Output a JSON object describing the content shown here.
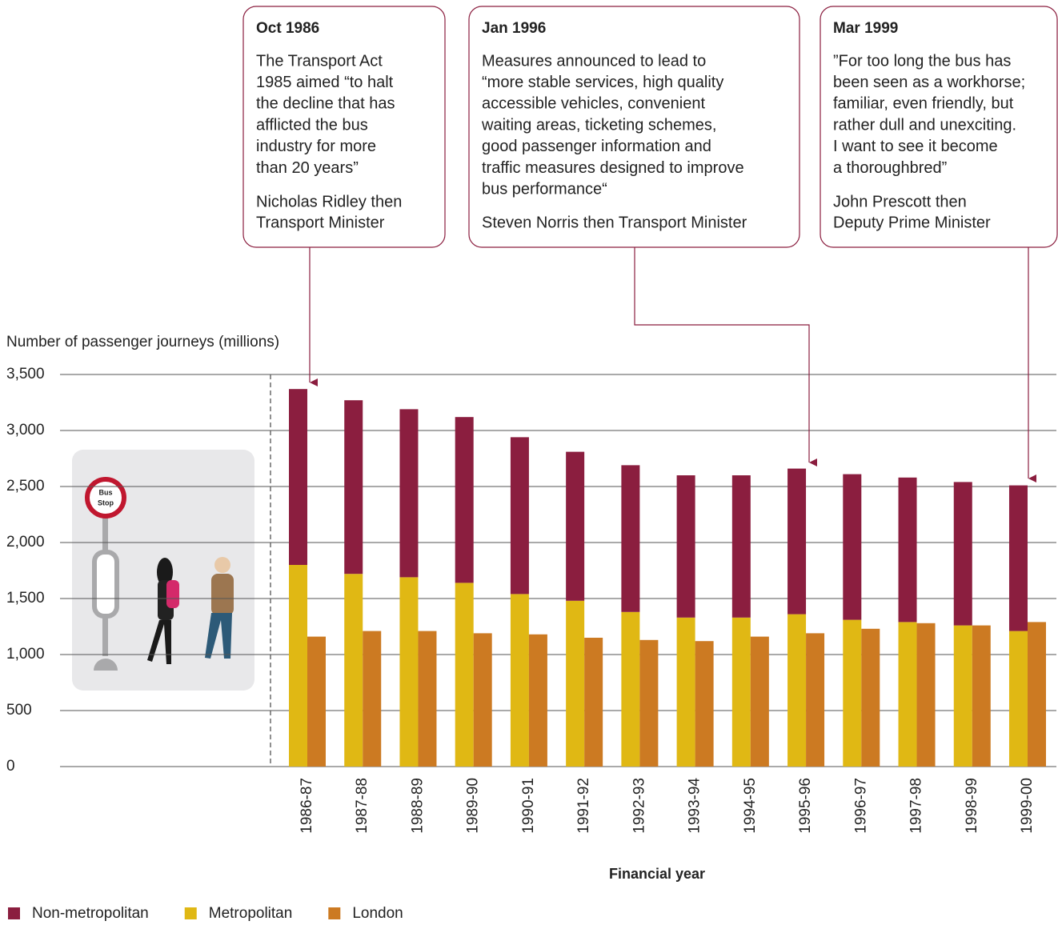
{
  "chart_data": {
    "type": "bar",
    "y_label": "Number of passenger journeys (millions)",
    "x_label": "Financial year",
    "categories": [
      "1986-87",
      "1987-88",
      "1988-89",
      "1989-90",
      "1990-91",
      "1991-92",
      "1992-93",
      "1993-94",
      "1994-95",
      "1995-96",
      "1996-97",
      "1997-98",
      "1998-99",
      "1999-00"
    ],
    "series": [
      {
        "name": "Non-metropolitan",
        "color": "#8b1e3f",
        "values": [
          1570,
          1550,
          1500,
          1480,
          1400,
          1330,
          1310,
          1270,
          1270,
          1300,
          1300,
          1290,
          1280,
          1300
        ]
      },
      {
        "name": "Metropolitan",
        "color": "#e0b814",
        "values": [
          1800,
          1720,
          1690,
          1640,
          1540,
          1480,
          1380,
          1330,
          1330,
          1360,
          1310,
          1290,
          1260,
          1210
        ]
      },
      {
        "name": "London",
        "color": "#cc7a22",
        "values": [
          1160,
          1210,
          1210,
          1190,
          1180,
          1150,
          1130,
          1120,
          1160,
          1190,
          1230,
          1280,
          1260,
          1290
        ]
      }
    ],
    "ylim": [
      0,
      3500
    ],
    "yticks": [
      0,
      500,
      {
        "value": 1000,
        "label": "1,000"
      },
      {
        "value": 1500,
        "label": "1,500"
      },
      {
        "value": 2000,
        "label": "2,000"
      },
      {
        "value": 2500,
        "label": "2,500"
      },
      {
        "value": 3000,
        "label": "3,000"
      },
      {
        "value": 3500,
        "label": "3,500"
      }
    ],
    "grid": true,
    "legend": "bottom-left",
    "annotations": [
      {
        "date": "Oct 1986",
        "lines": [
          "The Transport Act",
          "1985 aimed “to halt",
          "the decline that has",
          "afflicted the bus",
          "industry for more",
          "than 20 years”"
        ],
        "source": [
          "Nicholas Ridley then",
          "Transport Minister"
        ]
      },
      {
        "date": "Jan 1996",
        "lines": [
          "Measures announced to lead to",
          "“more stable services, high quality",
          "accessible vehicles, convenient",
          "waiting areas, ticketing schemes,",
          "good passenger information and",
          "traffic measures designed to improve",
          "bus performance“"
        ],
        "source": [
          "Steven Norris then Transport Minister"
        ]
      },
      {
        "date": "Mar 1999",
        "lines": [
          "”For too long the bus has",
          "been seen as a workhorse;",
          "familiar, even friendly, but",
          "rather dull and unexciting.",
          "I want to see it become",
          "a thoroughbred”"
        ],
        "source": [
          "John Prescott then",
          "Deputy Prime Minister"
        ]
      }
    ]
  },
  "illustration_sign": [
    "Bus",
    "Stop"
  ]
}
